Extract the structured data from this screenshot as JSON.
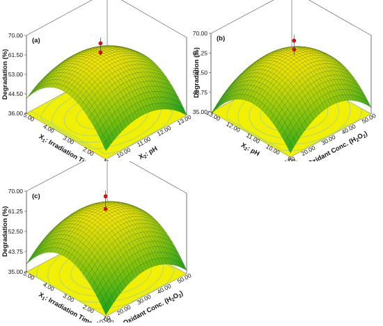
{
  "chart_data": [
    {
      "type": "surface3d",
      "panel_label": "(a)",
      "zlabel": "Degradation (%)",
      "xlabel_prefix": "X",
      "xlabel_sub": "1",
      "xlabel_text": ": Irradiation Time",
      "ylabel_prefix": "X",
      "ylabel_sub": "2",
      "ylabel_text": ": pH",
      "xticks": [
        "1.00",
        "2.00",
        "3.00",
        "4.00",
        "5.00"
      ],
      "yticks": [
        "9.00",
        "10.00",
        "11.00",
        "12.00",
        "13.00"
      ],
      "zticks": [
        "36.00",
        "44.50",
        "53.00",
        "61.50",
        "70.00"
      ],
      "xlim": [
        1,
        5
      ],
      "ylim": [
        9,
        13
      ],
      "zlim": [
        36,
        70
      ],
      "surface": {
        "peak": 62,
        "peak_x": 3.1,
        "peak_y": 10.8,
        "curv_x": 14,
        "curv_y": 8.5,
        "colors": [
          "#1ea51e",
          "#f5e400"
        ]
      },
      "design_points": [
        63.5,
        67.5
      ],
      "floor_color": "#f0f000",
      "contour_color": "#9fd09f"
    },
    {
      "type": "surface3d",
      "panel_label": "(b)",
      "zlabel": "Degradation (%)",
      "xlabel_prefix": "X",
      "xlabel_sub": "2",
      "xlabel_text": ": pH",
      "ylabel_prefix": "X",
      "ylabel_sub": "3",
      "ylabel_text": ": Oxidant Conc. (H",
      "ylabel_sub2": "2",
      "ylabel_mid": "O",
      "ylabel_sub3": "2",
      "ylabel_end": ")",
      "xticks": [
        "9.00",
        "10.00",
        "11.00",
        "12.00",
        "13.00"
      ],
      "yticks": [
        "10.00",
        "20.00",
        "30.00",
        "40.00",
        "50.00"
      ],
      "zticks": [
        "35.00",
        "43.75",
        "52.50",
        "61.25",
        "70.00"
      ],
      "xlim": [
        9,
        13
      ],
      "ylim": [
        10,
        50
      ],
      "zlim": [
        35,
        70
      ],
      "surface": {
        "peak": 61,
        "peak_x": 10.9,
        "peak_y": 30.5,
        "curv_x": 14,
        "curv_y": 11,
        "colors": [
          "#1ea51e",
          "#f5e400"
        ]
      },
      "design_points": [
        63.5,
        67.5
      ],
      "floor_color": "#f0f000",
      "contour_color": "#9fd09f"
    },
    {
      "type": "surface3d",
      "panel_label": "(c)",
      "zlabel": "Degradation (%)",
      "xlabel_prefix": "X",
      "xlabel_sub": "1",
      "xlabel_text": ": Irradiation Time",
      "ylabel_prefix": "X",
      "ylabel_sub": "3",
      "ylabel_text": ": Oxidant Conc. (H",
      "ylabel_sub2": "2",
      "ylabel_mid": "O",
      "ylabel_sub3": "2",
      "ylabel_end": ")",
      "xticks": [
        "1.00",
        "2.00",
        "3.00",
        "4.00",
        "5.00"
      ],
      "yticks": [
        "10.00",
        "20.00",
        "30.00",
        "40.00",
        "50.00"
      ],
      "zticks": [
        "35.00",
        "43.75",
        "52.50",
        "61.25",
        "70.00"
      ],
      "xlim": [
        1,
        5
      ],
      "ylim": [
        10,
        50
      ],
      "zlim": [
        35,
        70
      ],
      "surface": {
        "peak": 61.5,
        "peak_x": 3.1,
        "peak_y": 30.5,
        "curv_x": 14,
        "curv_y": 10,
        "colors": [
          "#1ea51e",
          "#f5e400"
        ]
      },
      "design_points": [
        62,
        67.5
      ],
      "floor_color": "#f0f000",
      "contour_color": "#9fd09f"
    }
  ]
}
